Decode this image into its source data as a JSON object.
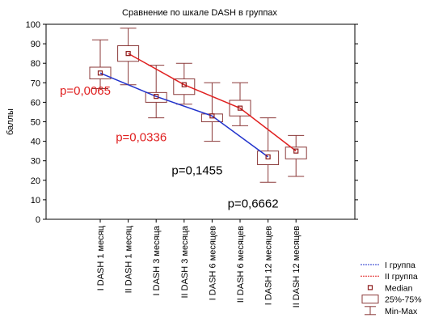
{
  "chart_data": {
    "type": "box",
    "title": "Сравнение по шкале  DASH в группах",
    "ylabel": "баллы",
    "xlabel": "",
    "ylim": [
      0,
      100
    ],
    "yticks": [
      0,
      10,
      20,
      30,
      40,
      50,
      60,
      70,
      80,
      90,
      100
    ],
    "grid": false,
    "legend_position": "bottom-right",
    "categories": [
      "I DASH 1 месяц",
      "II DASH 1 месяц",
      "I DASH 3 месяца",
      "II DASH 3 месяца",
      "I DASH 6 месяцев",
      "II DASH 6 месяцев",
      "I DASH 12 месяцев",
      "II DASH 12 месяцев"
    ],
    "boxes": [
      {
        "median": 75,
        "q1": 72,
        "q3": 78,
        "min": 67,
        "max": 92
      },
      {
        "median": 85,
        "q1": 81,
        "q3": 89,
        "min": 69,
        "max": 98
      },
      {
        "median": 63,
        "q1": 60,
        "q3": 65,
        "min": 52,
        "max": 79
      },
      {
        "median": 69,
        "q1": 64,
        "q3": 72,
        "min": 59,
        "max": 80
      },
      {
        "median": 53,
        "q1": 50,
        "q3": 54,
        "min": 40,
        "max": 70
      },
      {
        "median": 57,
        "q1": 53,
        "q3": 61,
        "min": 48,
        "max": 70
      },
      {
        "median": 32,
        "q1": 28,
        "q3": 35,
        "min": 19,
        "max": 52
      },
      {
        "median": 35,
        "q1": 31,
        "q3": 37,
        "min": 22,
        "max": 43
      }
    ],
    "series": [
      {
        "name": "I группа",
        "color": "#2233cc",
        "box_indices": [
          0,
          2,
          4,
          6
        ]
      },
      {
        "name": "II группа",
        "color": "#e02020",
        "box_indices": [
          1,
          3,
          5,
          7
        ]
      }
    ],
    "annotations": [
      {
        "text": "p=0,0065",
        "color": "#e02020",
        "x_index": 0,
        "y": 64
      },
      {
        "text": "p=0,0336",
        "color": "#e02020",
        "x_index": 2,
        "y": 40
      },
      {
        "text": "p=0,1455",
        "color": "#000000",
        "x_index": 4,
        "y": 23
      },
      {
        "text": "p=0,6662",
        "color": "#000000",
        "x_index": 6,
        "y": 6
      }
    ],
    "legend": [
      {
        "key": "group1",
        "label": "I группа"
      },
      {
        "key": "group2",
        "label": "II группа"
      },
      {
        "key": "median",
        "label": "Median"
      },
      {
        "key": "box",
        "label": "25%-75%"
      },
      {
        "key": "whisker",
        "label": "Min-Max"
      }
    ],
    "colors": {
      "box": "#8b3a3a",
      "median_marker": "#8b1a1a"
    }
  }
}
